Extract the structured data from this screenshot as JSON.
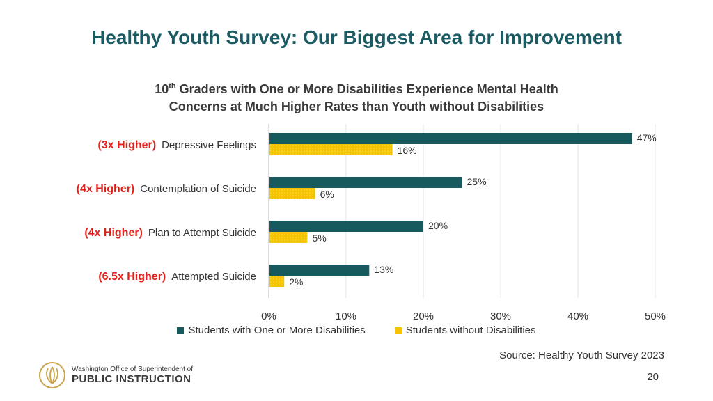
{
  "page": {
    "title": "Healthy Youth Survey: Our Biggest Area for Improvement",
    "subtitle_pre": "10",
    "subtitle_sup": "th",
    "subtitle_line1_rest": " Graders with One or More Disabilities Experience Mental Health",
    "subtitle_line2": "Concerns at Much Higher Rates than Youth without Disabilities",
    "source": "Source: Healthy Youth Survey 2023",
    "page_number": "20",
    "logo_small": "Washington Office of Superintendent of",
    "logo_big": "PUBLIC INSTRUCTION"
  },
  "colors": {
    "title": "#1b5b63",
    "series1": "#165a5e",
    "series2": "#f5c400",
    "highlight": "#e3201b"
  },
  "chart_data": {
    "type": "bar",
    "orientation": "horizontal",
    "categories": [
      "Depressive Feelings",
      "Contemplation of Suicide",
      "Plan to Attempt Suicide",
      "Attempted Suicide"
    ],
    "category_notes": [
      "(3x Higher)",
      "(4x Higher)",
      "(4x Higher)",
      "(6.5x Higher)"
    ],
    "series": [
      {
        "name": "Students with One or More Disabilities",
        "values": [
          47,
          25,
          20,
          13
        ],
        "labels": [
          "47%",
          "25%",
          "20%",
          "13%"
        ],
        "color": "#165a5e"
      },
      {
        "name": "Students without Disabilities",
        "values": [
          16,
          6,
          5,
          2
        ],
        "labels": [
          "16%",
          "6%",
          "5%",
          "2%"
        ],
        "color": "#f5c400"
      }
    ],
    "xlim": [
      0,
      50
    ],
    "xticks": [
      0,
      10,
      20,
      30,
      40,
      50
    ],
    "xtick_labels": [
      "0%",
      "10%",
      "20%",
      "30%",
      "40%",
      "50%"
    ],
    "grid": true,
    "legend_position": "bottom"
  }
}
